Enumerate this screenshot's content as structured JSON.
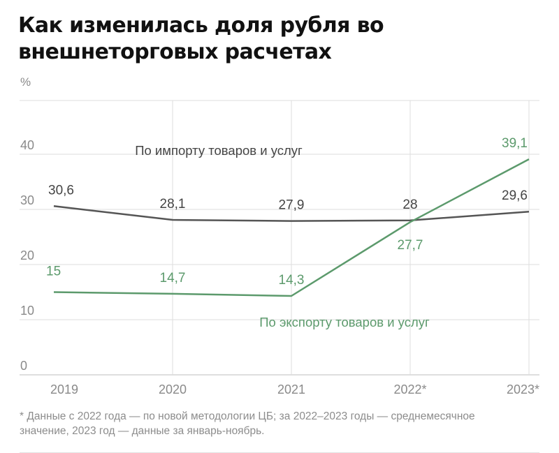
{
  "title": "Как изменилась доля рубля во внешнеторговых расчетах",
  "unit": "%",
  "footnote": "* Данные с 2022 года — по новой методологии ЦБ; за 2022–2023 годы — среднемесячное значение, 2023 год — данные за январь-ноябрь.",
  "colors": {
    "import": "#555555",
    "export": "#5c9a6c",
    "grid": "#dddddd",
    "axis_text": "#8a8a8a"
  },
  "chart_data": {
    "type": "line",
    "categories": [
      "2019",
      "2020",
      "2021",
      "2022*",
      "2023*"
    ],
    "ylim": [
      0,
      40
    ],
    "yticks": [
      0,
      10,
      20,
      30,
      40
    ],
    "grid": true,
    "xlabel": "",
    "ylabel": "%",
    "series": [
      {
        "name": "По импорту товаров и услуг",
        "key": "import",
        "values": [
          30.6,
          28.1,
          27.9,
          28,
          29.6
        ],
        "labels": [
          "30,6",
          "28,1",
          "27,9",
          "28",
          "29,6"
        ]
      },
      {
        "name": "По экспорту товаров и услуг",
        "key": "export",
        "values": [
          15,
          14.7,
          14.3,
          27.7,
          39.1
        ],
        "labels": [
          "15",
          "14,7",
          "14,3",
          "27,7",
          "39,1"
        ]
      }
    ]
  }
}
